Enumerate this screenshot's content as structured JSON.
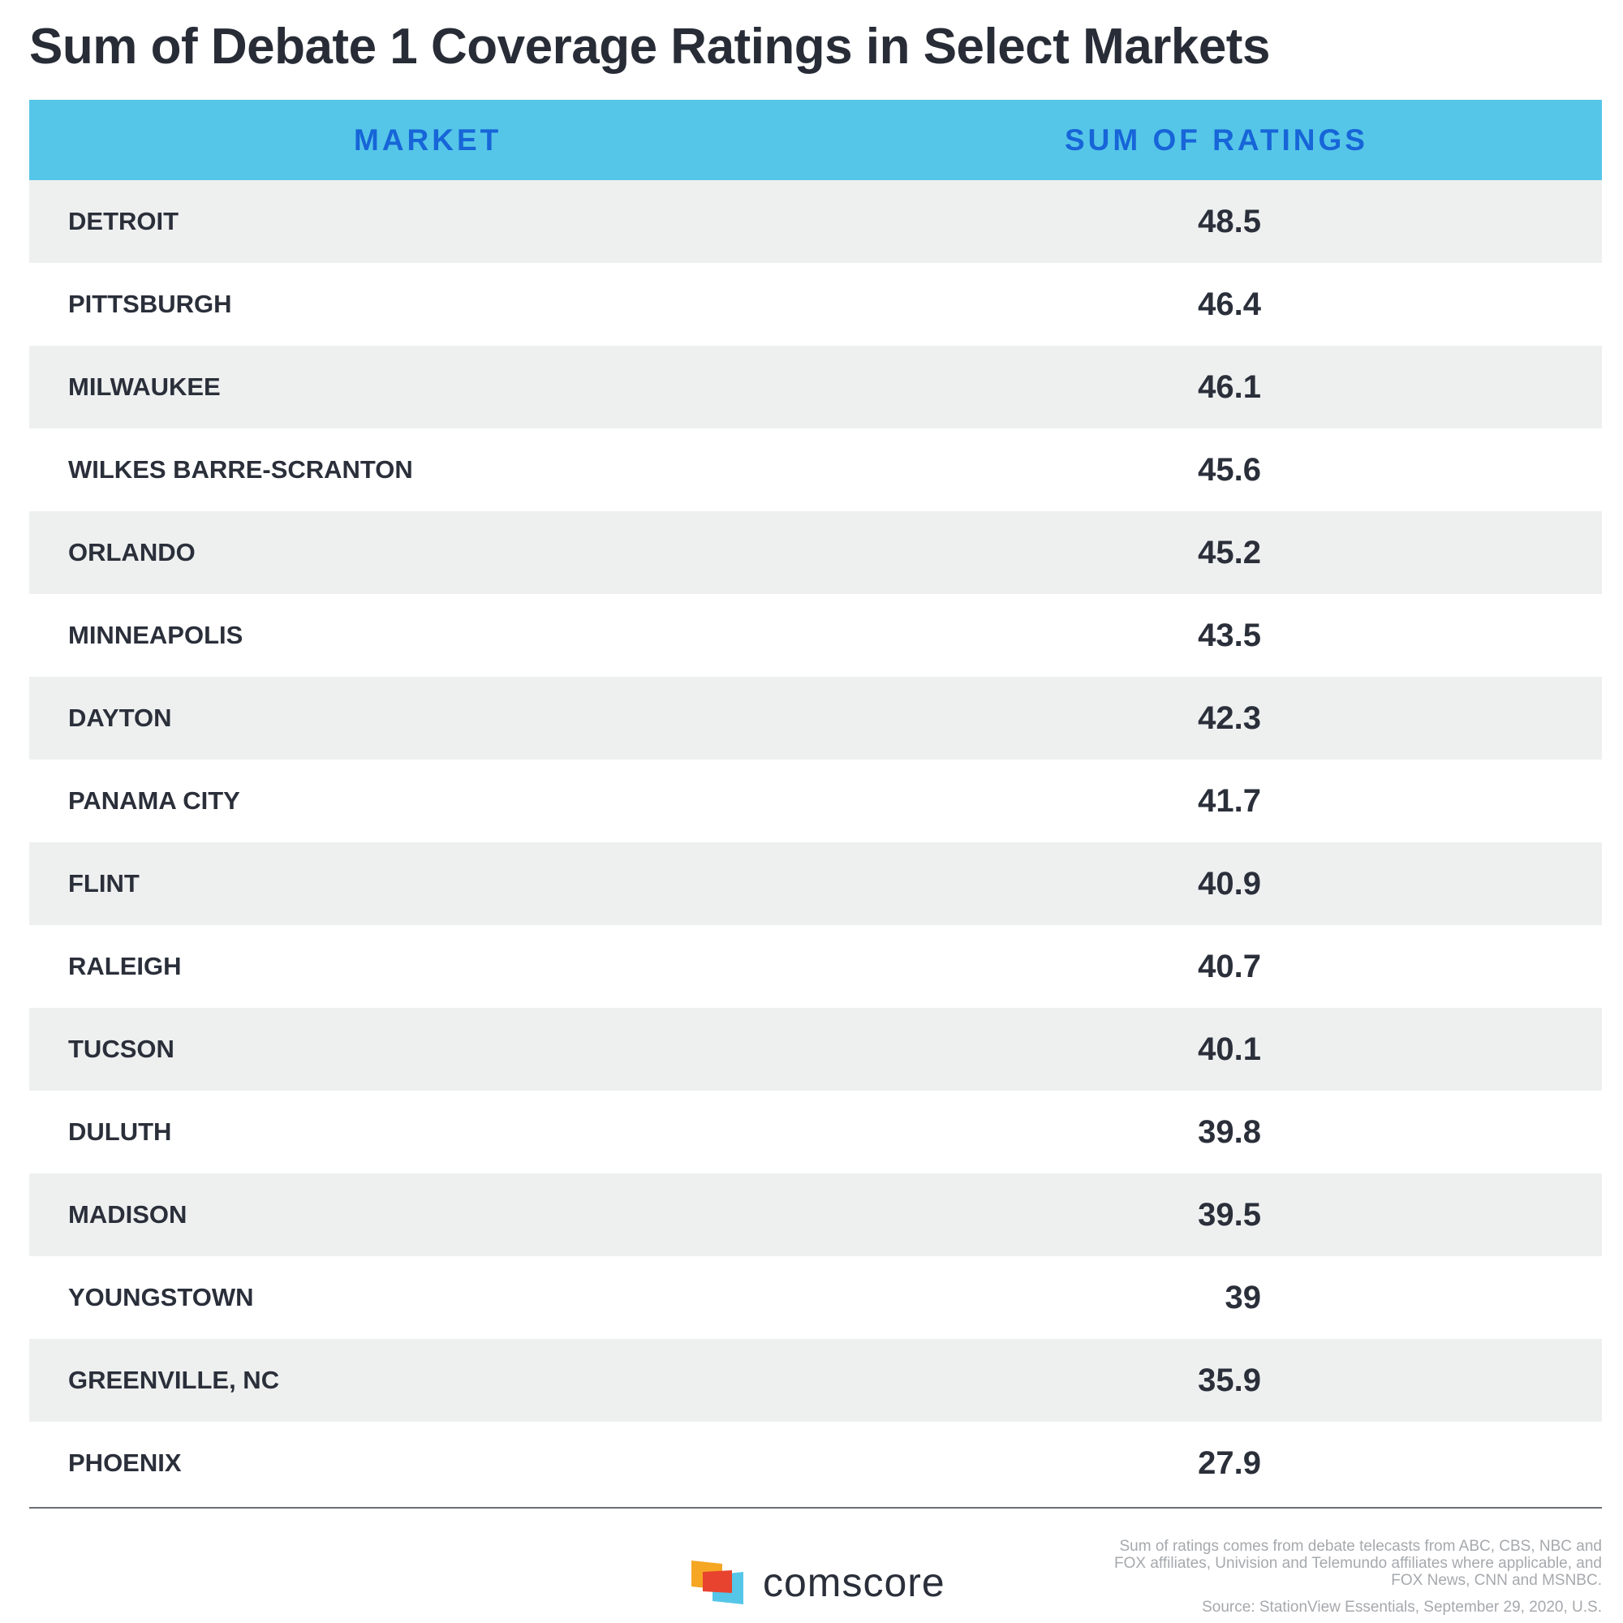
{
  "chart_data": {
    "type": "table",
    "title": "Sum of Debate 1 Coverage Ratings in Select Markets",
    "columns": [
      "MARKET",
      "SUM OF RATINGS"
    ],
    "rows": [
      {
        "market": "DETROIT",
        "value": "48.5"
      },
      {
        "market": "PITTSBURGH",
        "value": "46.4"
      },
      {
        "market": "MILWAUKEE",
        "value": "46.1"
      },
      {
        "market": "WILKES BARRE-SCRANTON",
        "value": "45.6"
      },
      {
        "market": "ORLANDO",
        "value": "45.2"
      },
      {
        "market": "MINNEAPOLIS",
        "value": "43.5"
      },
      {
        "market": "DAYTON",
        "value": "42.3"
      },
      {
        "market": "PANAMA CITY",
        "value": "41.7"
      },
      {
        "market": "FLINT",
        "value": "40.9"
      },
      {
        "market": "RALEIGH",
        "value": "40.7"
      },
      {
        "market": "TUCSON",
        "value": "40.1"
      },
      {
        "market": "DULUTH",
        "value": "39.8"
      },
      {
        "market": "MADISON",
        "value": "39.5"
      },
      {
        "market": "YOUNGSTOWN",
        "value": "39"
      },
      {
        "market": "GREENVILLE, NC",
        "value": "35.9"
      },
      {
        "market": "PHOENIX",
        "value": "27.9"
      }
    ]
  },
  "footer": {
    "logo_text": "comscore",
    "note": "Sum of ratings comes from debate telecasts from ABC, CBS, NBC and FOX affiliates, Univision and Telemundo affiliates where applicable, and FOX News, CNN and MSNBC.",
    "source": "Source: StationView Essentials, September 29, 2020, U.S."
  },
  "colors": {
    "header_bg": "#55c6e8",
    "header_text": "#1765d8",
    "row_shaded": "#eef0f0",
    "text": "#2a2f3a",
    "logo_orange": "#f5a623",
    "logo_red": "#e8432f",
    "logo_blue": "#55c6e8"
  }
}
